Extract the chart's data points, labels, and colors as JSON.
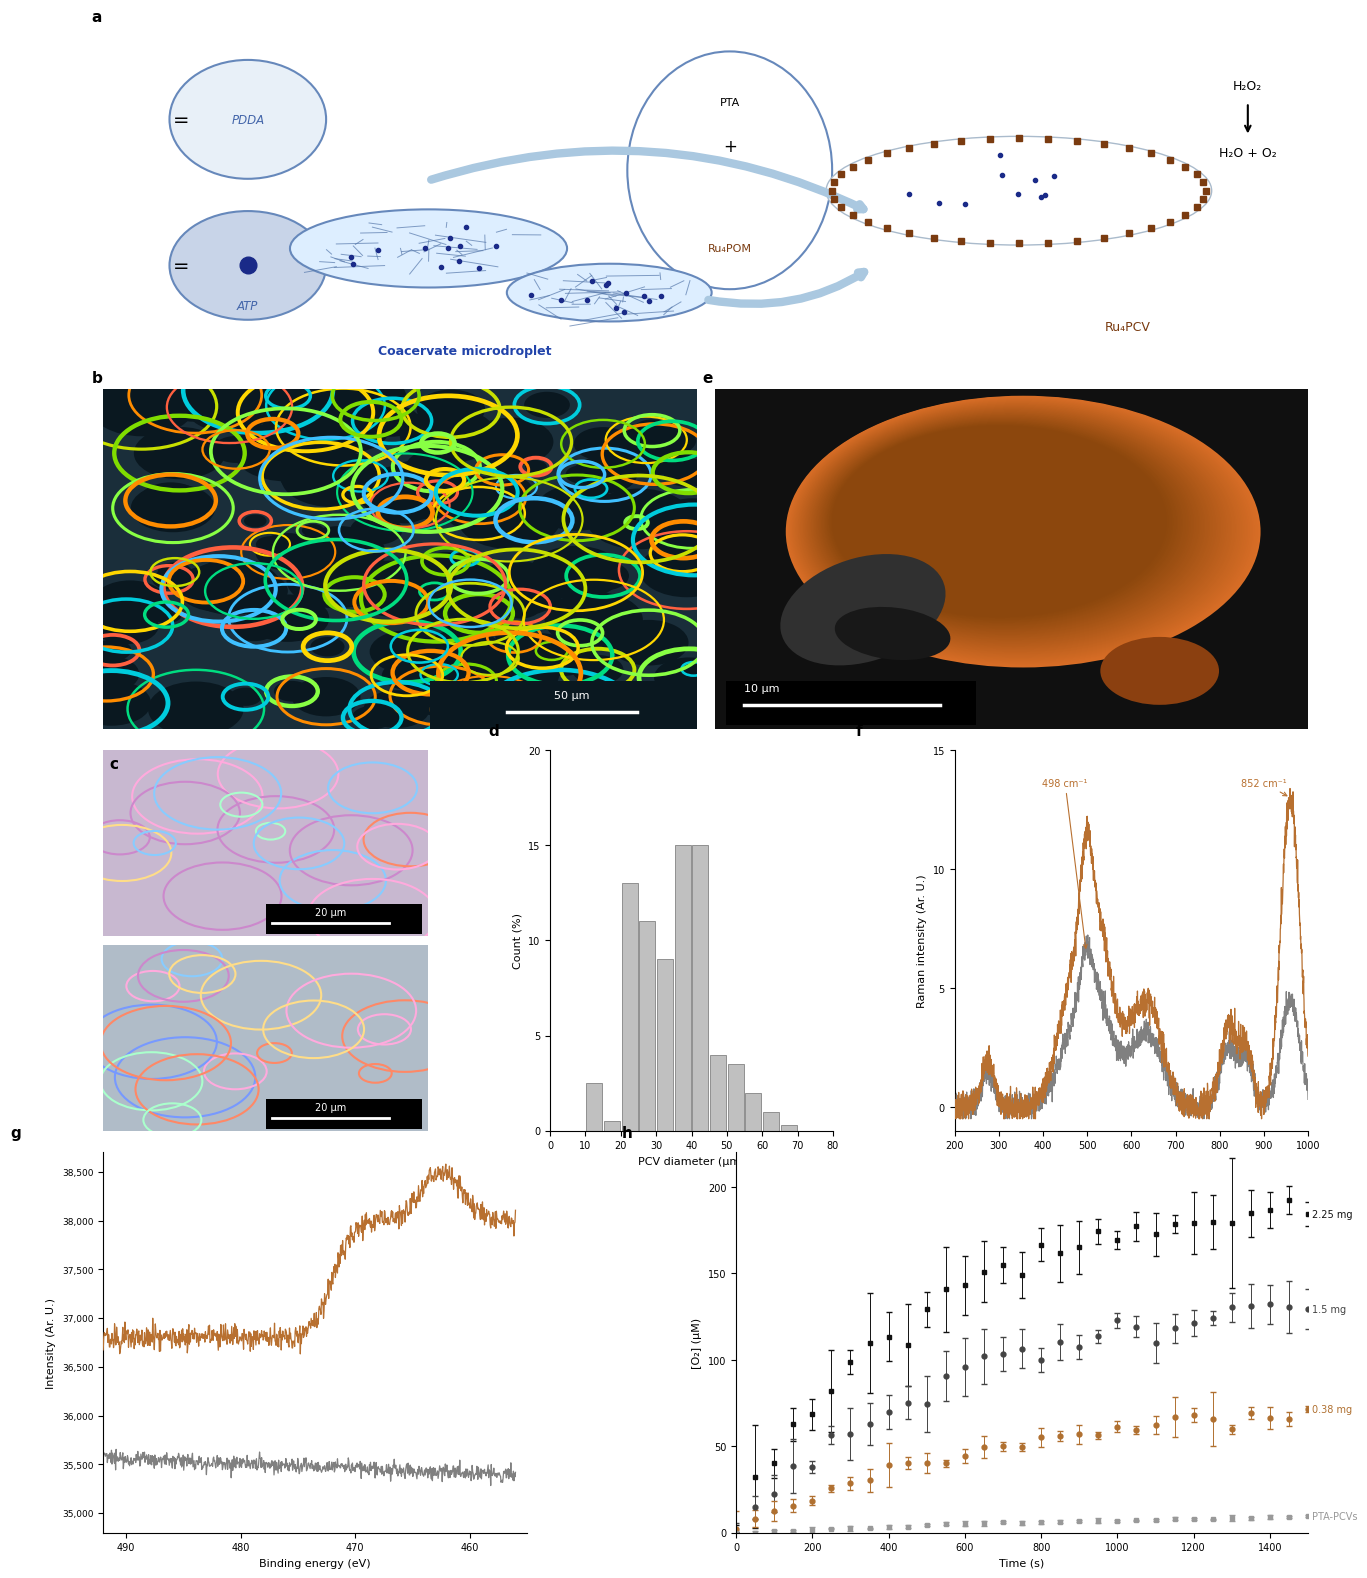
{
  "background_color": "#ffffff",
  "panel_label_fontsize": 11,
  "panel_label_fontweight": "bold",
  "hist_d": {
    "bin_edges": [
      0,
      5,
      10,
      15,
      20,
      25,
      30,
      35,
      40,
      45,
      50,
      55,
      60,
      65,
      70,
      75,
      80
    ],
    "counts": [
      0,
      0,
      2.5,
      0.5,
      13,
      11,
      9,
      15,
      15,
      4,
      3.5,
      2,
      1,
      0.3,
      0,
      0
    ],
    "color": "#c0c0c0",
    "edgecolor": "#909090",
    "xlabel": "PCV diameter (μm)",
    "ylabel": "Count (%)",
    "xlim": [
      0,
      80
    ],
    "ylim": [
      0,
      20
    ],
    "yticks": [
      0,
      5,
      10,
      15,
      20
    ],
    "xticks": [
      0,
      10,
      20,
      30,
      40,
      50,
      60,
      70,
      80
    ]
  },
  "raman_f": {
    "xlabel": "Raman shift (cm⁻¹)",
    "ylabel": "Raman intensity (Ar. U.)",
    "xlim": [
      200,
      1000
    ],
    "ylim": [
      -1,
      15
    ],
    "yticks": [
      0,
      5,
      10,
      15
    ],
    "xticks": [
      200,
      300,
      400,
      500,
      600,
      700,
      800,
      900,
      1000
    ],
    "line1_color": "#b87030",
    "line2_color": "#808080",
    "ann1_x": 498,
    "ann1_label": "498 cm⁻¹",
    "ann2_x": 852,
    "ann2_label": "852 cm⁻¹"
  },
  "xps_g": {
    "xlabel": "Binding energy (eV)",
    "ylabel": "Intensity (Ar. U.)",
    "xlim": [
      492,
      455
    ],
    "ylim": [
      34800,
      38700
    ],
    "yticks": [
      35000,
      35500,
      36000,
      36500,
      37000,
      37500,
      38000,
      38500
    ],
    "xticks": [
      490,
      480,
      470,
      460
    ],
    "line1_color": "#b87030",
    "line2_color": "#808080"
  },
  "o2_h": {
    "xlabel": "Time (s)",
    "ylabel": "[O₂] (μM)",
    "xlim": [
      0,
      1500
    ],
    "ylim": [
      0,
      220
    ],
    "yticks": [
      0,
      50,
      100,
      150,
      200
    ],
    "xticks": [
      0,
      200,
      400,
      600,
      800,
      1000,
      1200,
      1400
    ],
    "series": [
      {
        "label": "2.25 mg",
        "color": "#111111",
        "marker": "s",
        "max": 195,
        "rate": 0.0022
      },
      {
        "label": "1.5 mg",
        "color": "#444444",
        "marker": "o",
        "max": 140,
        "rate": 0.0018
      },
      {
        "label": "0.38 mg",
        "color": "#b07030",
        "marker": "o",
        "max": 78,
        "rate": 0.0015
      },
      {
        "label": "PTA-PCVs",
        "color": "#999999",
        "marker": "s",
        "max": 13,
        "rate": 0.0008
      }
    ]
  }
}
